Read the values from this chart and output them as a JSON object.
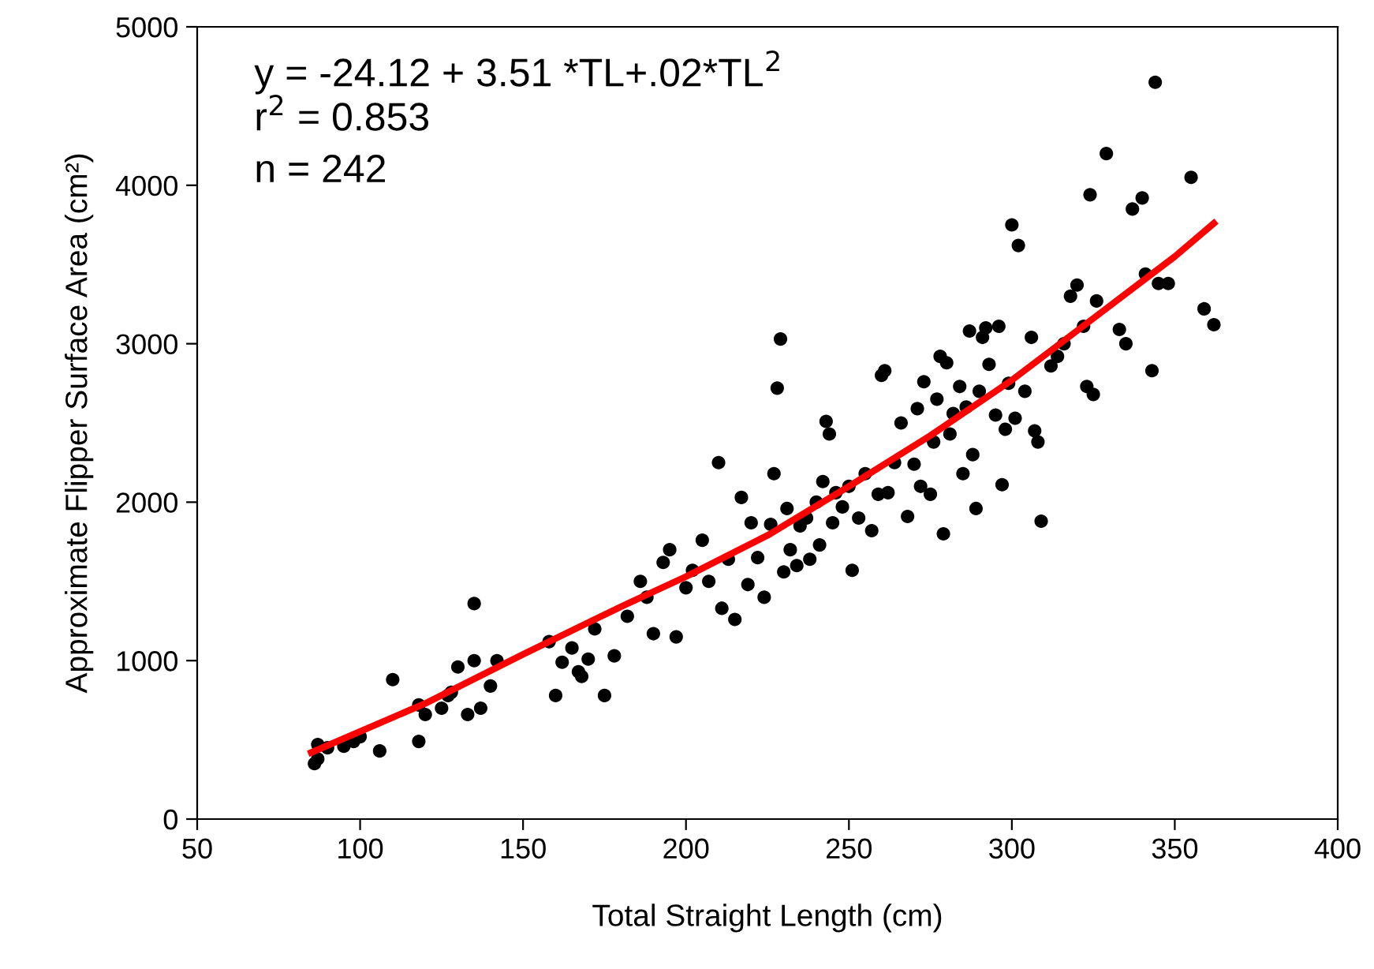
{
  "chart_data": {
    "type": "scatter",
    "xlabel": "Total Straight Length (cm)",
    "ylabel": "Approximate Flipper Surface Area (cm²)",
    "xlim": [
      50,
      400
    ],
    "xticks": [
      50,
      100,
      150,
      200,
      250,
      300,
      350,
      400
    ],
    "ylim": [
      0,
      5000
    ],
    "yticks": [
      0,
      1000,
      2000,
      3000,
      4000,
      5000
    ],
    "grid": false,
    "annotations": [
      "y = -24.12 + 3.51 *TL+.02*TL$^{2}$",
      "r$^{2}$ = 0.853",
      "n = 242"
    ],
    "series": [
      {
        "color": "#000000",
        "marker": "circle",
        "x": [
          86,
          87,
          87,
          90,
          95,
          98,
          100,
          106,
          110,
          118,
          118,
          120,
          125,
          127,
          128,
          130,
          133,
          135,
          135,
          137,
          140,
          142,
          158,
          160,
          162,
          165,
          167,
          168,
          170,
          172,
          175,
          178,
          182,
          186,
          188,
          190,
          193,
          195,
          197,
          200,
          202,
          205,
          207,
          210,
          211,
          213,
          215,
          217,
          219,
          220,
          222,
          224,
          226,
          227,
          228,
          229,
          230,
          231,
          232,
          234,
          235,
          237,
          238,
          240,
          241,
          242,
          243,
          244,
          245,
          246,
          248,
          250,
          251,
          253,
          255,
          257,
          259,
          260,
          261,
          262,
          264,
          266,
          268,
          270,
          271,
          272,
          273,
          275,
          276,
          277,
          278,
          279,
          280,
          281,
          282,
          284,
          285,
          286,
          287,
          288,
          289,
          290,
          291,
          292,
          293,
          295,
          296,
          297,
          298,
          299,
          300,
          301,
          302,
          304,
          306,
          307,
          308,
          309,
          312,
          314,
          316,
          318,
          320,
          322,
          323,
          324,
          325,
          326,
          329,
          333,
          335,
          337,
          340,
          341,
          343,
          344,
          345,
          348,
          355,
          359,
          362
        ],
        "values": [
          350,
          380,
          470,
          450,
          460,
          490,
          520,
          430,
          880,
          720,
          490,
          660,
          700,
          780,
          800,
          960,
          660,
          1000,
          1360,
          700,
          840,
          1000,
          1120,
          780,
          990,
          1080,
          930,
          900,
          1010,
          1200,
          780,
          1030,
          1280,
          1500,
          1400,
          1170,
          1620,
          1700,
          1150,
          1460,
          1570,
          1760,
          1500,
          2250,
          1330,
          1640,
          1260,
          2030,
          1480,
          1870,
          1650,
          1400,
          1860,
          2180,
          2720,
          3030,
          1560,
          1960,
          1700,
          1600,
          1850,
          1900,
          1640,
          2000,
          1730,
          2130,
          2510,
          2430,
          1870,
          2060,
          1970,
          2100,
          1570,
          1900,
          2180,
          1820,
          2050,
          2800,
          2830,
          2060,
          2250,
          2500,
          1910,
          2240,
          2590,
          2100,
          2760,
          2050,
          2380,
          2650,
          2920,
          1800,
          2880,
          2430,
          2560,
          2730,
          2180,
          2600,
          3080,
          2300,
          1960,
          2700,
          3040,
          3100,
          2870,
          2550,
          3110,
          2110,
          2460,
          2750,
          3750,
          2530,
          3620,
          2700,
          3040,
          2450,
          2380,
          1880,
          2860,
          2920,
          3000,
          3300,
          3370,
          3110,
          2730,
          3940,
          2680,
          3270,
          4200,
          3090,
          3000,
          3850,
          3920,
          3440,
          2830,
          4650,
          3380,
          3380,
          4050,
          3220,
          3120
        ]
      },
      {
        "type": "line",
        "color": "#ff0000",
        "marker": "none",
        "line_style": "solid",
        "x": [
          85,
          120,
          150,
          180,
          200,
          225,
          250,
          275,
          300,
          325,
          350,
          362
        ],
        "values": [
          420,
          730,
          1040,
          1340,
          1530,
          1790,
          2100,
          2420,
          2770,
          3160,
          3550,
          3760
        ]
      }
    ]
  }
}
